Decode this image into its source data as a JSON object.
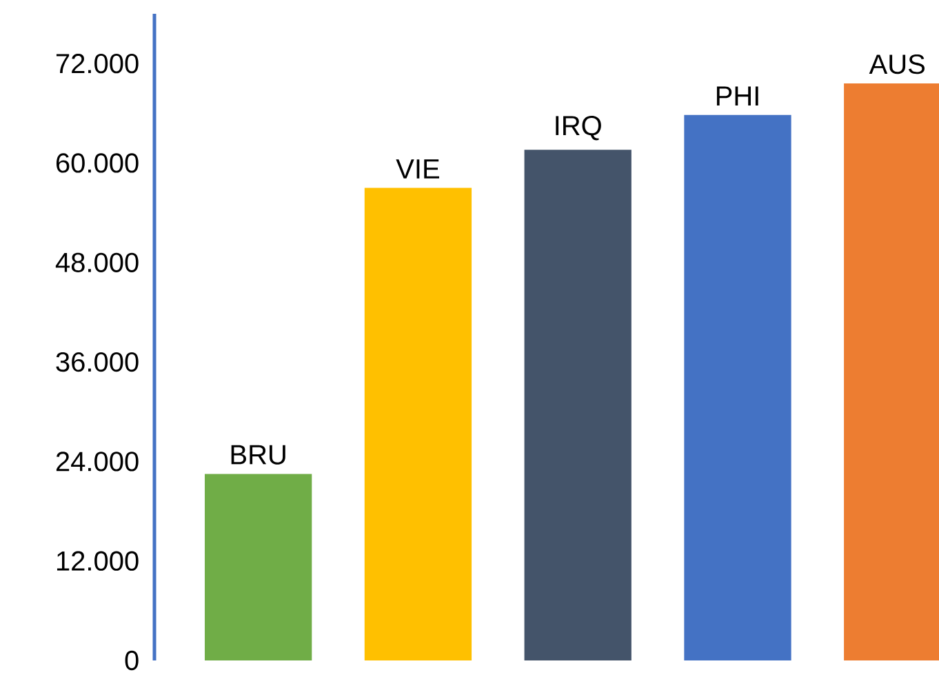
{
  "chart_data": {
    "type": "bar",
    "categories": [
      "BRU",
      "VIE",
      "IRQ",
      "PHI",
      "AUS"
    ],
    "values": [
      22500,
      57000,
      61600,
      65800,
      69600
    ],
    "colors": [
      "#70ad47",
      "#ffc000",
      "#44546a",
      "#4472c4",
      "#ed7d31"
    ],
    "ylim": [
      0,
      78000
    ],
    "yticks": [
      0,
      {
        "value": 12000,
        "label": "12.000"
      },
      {
        "value": 24000,
        "label": "24.000"
      },
      {
        "value": 36000,
        "label": "36.000"
      },
      {
        "value": 48000,
        "label": "48.000"
      },
      {
        "value": 60000,
        "label": "60.000"
      },
      {
        "value": 72000,
        "label": "72.000"
      }
    ],
    "grid": false
  }
}
